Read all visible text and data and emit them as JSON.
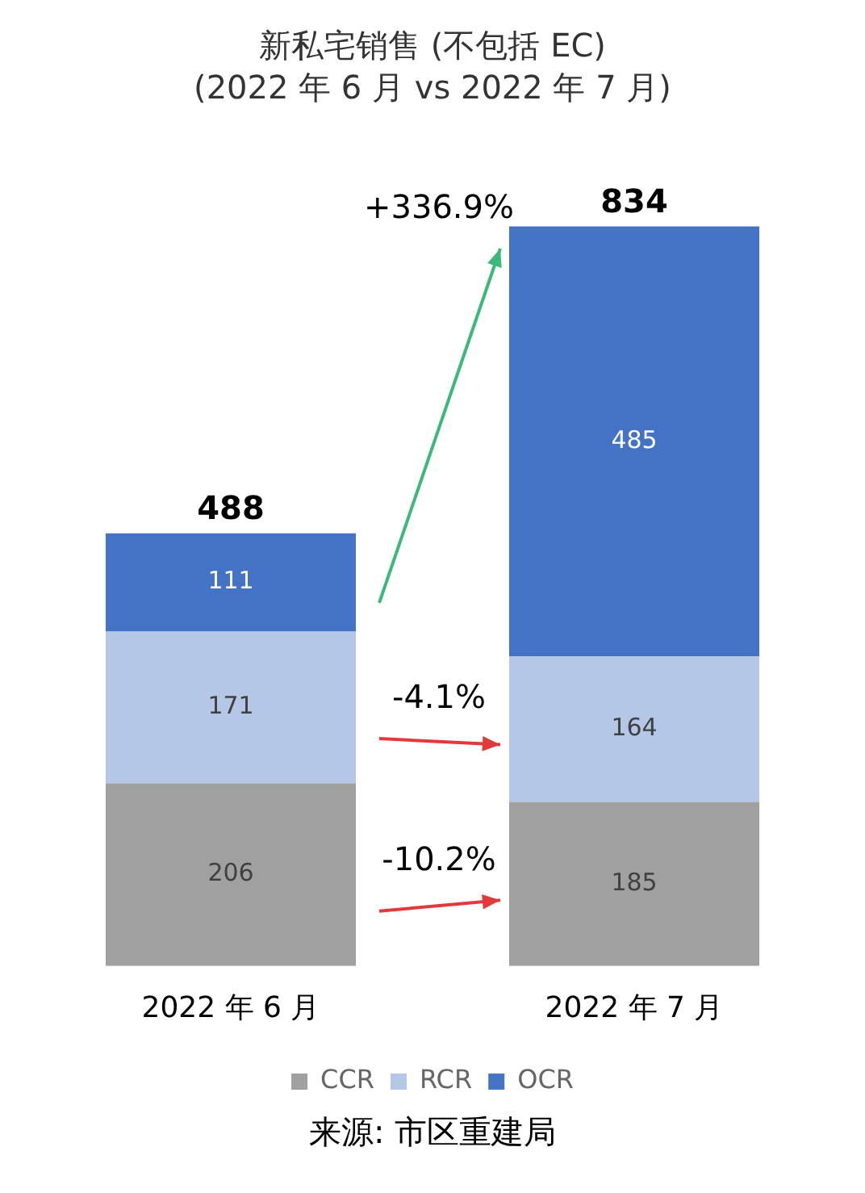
{
  "chart_data": {
    "type": "bar",
    "title": "新私宅销售 (不包括 EC)",
    "subtitle": "(2022 年 6 月 vs 2022 年 7 月)",
    "categories": [
      "2022 年 6 月",
      "2022 年 7 月"
    ],
    "stacked": true,
    "series": [
      {
        "name": "CCR",
        "color": "#a0a0a0",
        "values": [
          206,
          185
        ]
      },
      {
        "name": "RCR",
        "color": "#b4c7e7",
        "values": [
          171,
          164
        ]
      },
      {
        "name": "OCR",
        "color": "#4472c4",
        "values": [
          111,
          485
        ]
      }
    ],
    "totals": [
      "488",
      "834"
    ],
    "data_labels": true,
    "legend": "bottom",
    "grid": false,
    "tick_labels": "x",
    "annotations": [
      "+336.9%",
      "-4.1%",
      "-10.2%",
      "来源: 市区重建局"
    ]
  }
}
